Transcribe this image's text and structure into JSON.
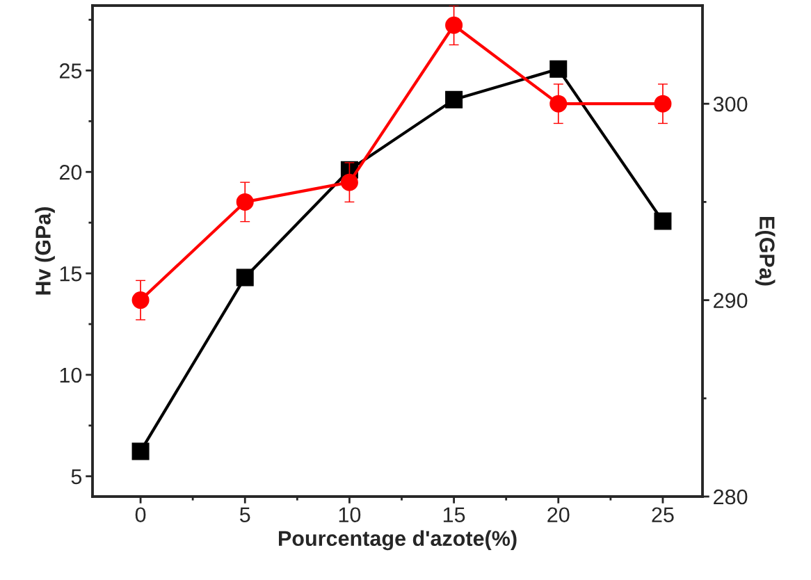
{
  "chart_data": {
    "type": "line",
    "xlabel": "Pourcentage d'azote(%)",
    "ylabel": "Hv (GPa)",
    "y2label": "E(GPa)",
    "x": [
      0,
      5,
      10,
      15,
      20,
      25
    ],
    "series": [
      {
        "color": "#000000",
        "marker": "square",
        "values": [
          6.23,
          14.8,
          20.1,
          23.56,
          25.07,
          17.57
        ],
        "errors": [
          0.3,
          0.3,
          0.3,
          0.3,
          0.3,
          0.3
        ]
      },
      {
        "color": "#ff0000",
        "marker": "circle",
        "axis": "y2",
        "values": [
          290,
          295,
          296,
          304,
          300,
          300
        ],
        "errors": [
          1,
          1,
          1,
          1,
          1,
          1
        ]
      }
    ],
    "xlim": [
      -2.3,
      26.9
    ],
    "xticks": [
      0,
      {
        "value": 2.5,
        "label": null
      },
      5,
      {
        "value": 7.5,
        "label": null
      },
      10,
      {
        "value": 12.5,
        "label": null
      },
      15,
      {
        "value": 17.5,
        "label": null
      },
      20,
      {
        "value": 22.5,
        "label": null
      },
      25
    ],
    "ylim": [
      4,
      28.2
    ],
    "yticks": [
      5,
      {
        "value": 7.5,
        "label": null
      },
      10,
      {
        "value": 12.5,
        "label": null
      },
      15,
      {
        "value": 17.5,
        "label": null
      },
      20,
      {
        "value": 22.5,
        "label": null
      },
      25,
      {
        "value": 27.5,
        "label": null
      }
    ],
    "y2lim": [
      280,
      305
    ],
    "y2ticks": [
      280,
      {
        "value": 285,
        "label": null
      },
      290,
      {
        "value": 295,
        "label": null
      },
      300
    ],
    "grid": false,
    "legend": false,
    "line_style": "solid"
  }
}
